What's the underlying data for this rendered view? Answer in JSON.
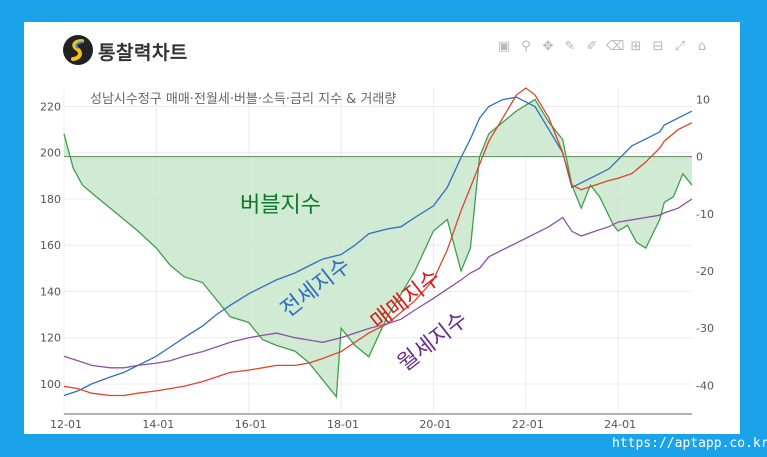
{
  "app": {
    "title": "통찰력차트",
    "footer_url": "https://aptapp.co.kr"
  },
  "toolbar": {
    "icons": [
      "camera-icon",
      "zoom-icon",
      "pan-icon",
      "draw-line-icon",
      "draw-open-path-icon",
      "erase-shape-icon",
      "zoom-in-icon",
      "zoom-out-icon",
      "autoscale-icon",
      "home-icon"
    ]
  },
  "chart_data": {
    "type": "line",
    "title": "성남시수정구 매매·전월세·버블·소득·금리 지수 & 거래량",
    "x_tick_labels": [
      "12-01",
      "14-01",
      "16-01",
      "18-01",
      "20-01",
      "22-01",
      "24-01"
    ],
    "x_range": [
      "2012-01",
      "2025-08"
    ],
    "y_left": {
      "range": [
        87,
        228
      ],
      "ticks": [
        100,
        120,
        140,
        160,
        180,
        200,
        220
      ]
    },
    "y_right": {
      "range": [
        -45,
        12
      ],
      "ticks": [
        10,
        0,
        -10,
        -20,
        -30,
        -40
      ]
    },
    "grid": true,
    "annotations": [
      {
        "text": "버블지수",
        "color": "#0a7a2a"
      },
      {
        "text": "전세지수",
        "color": "#2e6fc2"
      },
      {
        "text": "매매지수",
        "color": "#d81b1b"
      },
      {
        "text": "월세지수",
        "color": "#6a2c8f"
      }
    ],
    "series": [
      {
        "key": "bubble",
        "axis": "right",
        "color": "#3ea04a",
        "fill": "#c9e6cc",
        "x": [
          2012.0,
          2012.2,
          2012.4,
          2012.7,
          2013.0,
          2013.3,
          2013.6,
          2014.0,
          2014.3,
          2014.6,
          2015.0,
          2015.3,
          2015.6,
          2016.0,
          2016.3,
          2016.6,
          2017.0,
          2017.3,
          2017.6,
          2017.9,
          2018.0,
          2018.3,
          2018.6,
          2019.0,
          2019.3,
          2019.6,
          2020.0,
          2020.3,
          2020.6,
          2020.8,
          2021.0,
          2021.2,
          2021.5,
          2021.8,
          2022.0,
          2022.2,
          2022.5,
          2022.8,
          2023.0,
          2023.2,
          2023.4,
          2023.6,
          2023.9,
          2024.0,
          2024.2,
          2024.4,
          2024.6,
          2024.9,
          2025.0,
          2025.2,
          2025.4,
          2025.6
        ],
        "y": [
          4,
          -2,
          -5,
          -7,
          -9,
          -11,
          -13,
          -16,
          -19,
          -21,
          -22,
          -25,
          -28,
          -29,
          -32,
          -33,
          -34,
          -36,
          -39,
          -42,
          -30,
          -33,
          -35,
          -28,
          -24,
          -20,
          -13,
          -11,
          -20,
          -16,
          0,
          4,
          6,
          8,
          9,
          10,
          6,
          3,
          -5,
          -9,
          -5,
          -7,
          -12,
          -13,
          -12,
          -15,
          -16,
          -11,
          -8,
          -7,
          -3,
          -5
        ]
      },
      {
        "key": "jeonse",
        "axis": "left",
        "color": "#2e6fc2",
        "x": [
          2012.0,
          2012.3,
          2012.6,
          2013.0,
          2013.3,
          2013.6,
          2014.0,
          2014.3,
          2014.6,
          2015.0,
          2015.3,
          2015.6,
          2016.0,
          2016.3,
          2016.6,
          2017.0,
          2017.3,
          2017.6,
          2018.0,
          2018.3,
          2018.6,
          2019.0,
          2019.3,
          2019.6,
          2020.0,
          2020.3,
          2020.6,
          2020.8,
          2021.0,
          2021.2,
          2021.5,
          2021.8,
          2022.0,
          2022.2,
          2022.5,
          2022.8,
          2023.0,
          2023.2,
          2023.5,
          2023.8,
          2024.0,
          2024.3,
          2024.6,
          2024.9,
          2025.0,
          2025.3,
          2025.6
        ],
        "y": [
          95,
          97,
          100,
          103,
          105,
          108,
          112,
          116,
          120,
          125,
          130,
          134,
          139,
          142,
          145,
          148,
          151,
          154,
          156,
          160,
          165,
          167,
          168,
          172,
          177,
          185,
          198,
          206,
          215,
          220,
          223,
          224,
          222,
          220,
          210,
          200,
          185,
          187,
          190,
          193,
          197,
          203,
          206,
          209,
          212,
          215,
          218
        ]
      },
      {
        "key": "maemae",
        "axis": "left",
        "color": "#e0442a",
        "x": [
          2012.0,
          2012.3,
          2012.6,
          2013.0,
          2013.3,
          2013.6,
          2014.0,
          2014.3,
          2014.6,
          2015.0,
          2015.3,
          2015.6,
          2016.0,
          2016.3,
          2016.6,
          2017.0,
          2017.3,
          2017.6,
          2018.0,
          2018.3,
          2018.6,
          2019.0,
          2019.3,
          2019.6,
          2020.0,
          2020.3,
          2020.6,
          2020.8,
          2021.0,
          2021.2,
          2021.5,
          2021.8,
          2022.0,
          2022.2,
          2022.5,
          2022.8,
          2023.0,
          2023.2,
          2023.5,
          2023.8,
          2024.0,
          2024.3,
          2024.6,
          2024.9,
          2025.0,
          2025.3,
          2025.6
        ],
        "y": [
          99,
          98,
          96,
          95,
          95,
          96,
          97,
          98,
          99,
          101,
          103,
          105,
          106,
          107,
          108,
          108,
          109,
          111,
          114,
          118,
          122,
          126,
          131,
          136,
          145,
          158,
          175,
          185,
          195,
          205,
          215,
          225,
          228,
          225,
          215,
          200,
          186,
          184,
          186,
          188,
          189,
          191,
          196,
          202,
          205,
          210,
          213
        ]
      },
      {
        "key": "wolse",
        "axis": "left",
        "color": "#8e4fa7",
        "x": [
          2012.0,
          2012.3,
          2012.6,
          2013.0,
          2013.3,
          2013.6,
          2014.0,
          2014.3,
          2014.6,
          2015.0,
          2015.3,
          2015.6,
          2016.0,
          2016.3,
          2016.6,
          2017.0,
          2017.3,
          2017.6,
          2018.0,
          2018.3,
          2018.6,
          2019.0,
          2019.3,
          2019.6,
          2020.0,
          2020.3,
          2020.6,
          2020.8,
          2021.0,
          2021.2,
          2021.5,
          2021.8,
          2022.0,
          2022.2,
          2022.5,
          2022.8,
          2023.0,
          2023.2,
          2023.5,
          2023.8,
          2024.0,
          2024.3,
          2024.6,
          2024.9,
          2025.0,
          2025.3,
          2025.6
        ],
        "y": [
          112,
          110,
          108,
          107,
          107,
          108,
          109,
          110,
          112,
          114,
          116,
          118,
          120,
          121,
          122,
          120,
          119,
          118,
          120,
          122,
          124,
          126,
          128,
          132,
          137,
          141,
          145,
          148,
          150,
          155,
          158,
          161,
          163,
          165,
          168,
          172,
          166,
          164,
          166,
          168,
          170,
          171,
          172,
          173,
          174,
          176,
          180
        ]
      }
    ]
  }
}
